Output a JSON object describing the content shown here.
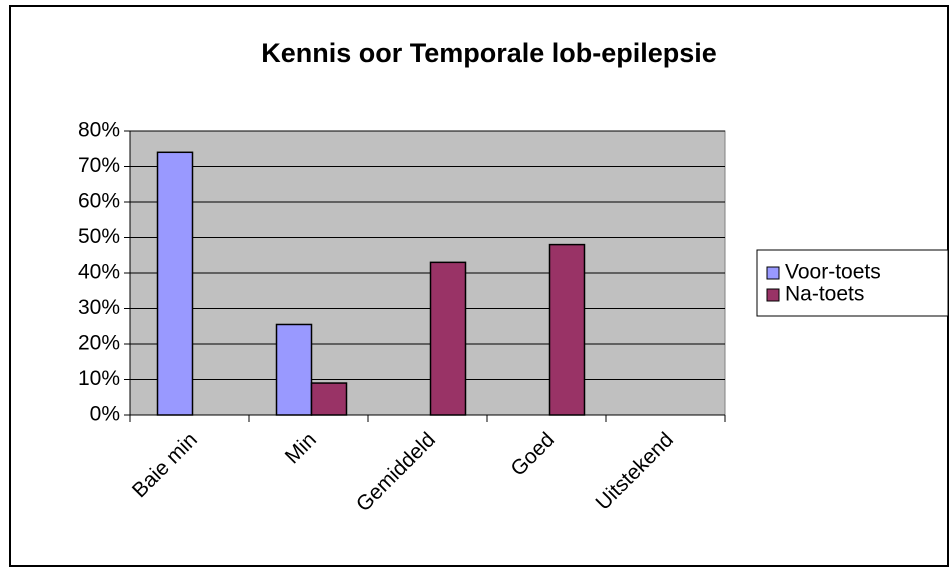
{
  "chart_data": {
    "type": "bar",
    "title": "Kennis oor Temporale lob-epilepsie",
    "categories": [
      "Baie min",
      "Min",
      "Gemiddeld",
      "Goed",
      "Uitstekend"
    ],
    "series": [
      {
        "name": "Voor-toets",
        "color": "#9999ff",
        "values": [
          74,
          25.5,
          0,
          0,
          0
        ]
      },
      {
        "name": "Na-toets",
        "color": "#993366",
        "values": [
          0,
          9,
          43,
          48,
          0
        ]
      }
    ],
    "ylim": [
      0,
      80
    ],
    "yticks": [
      {
        "value": 0,
        "label": "0%"
      },
      {
        "value": 10,
        "label": "10%"
      },
      {
        "value": 20,
        "label": "20%"
      },
      {
        "value": 30,
        "label": "30%"
      },
      {
        "value": 40,
        "label": "40%"
      },
      {
        "value": 50,
        "label": "50%"
      },
      {
        "value": 60,
        "label": "60%"
      },
      {
        "value": 70,
        "label": "70%"
      },
      {
        "value": 80,
        "label": "80%"
      }
    ],
    "grid": true,
    "legend": "right"
  }
}
